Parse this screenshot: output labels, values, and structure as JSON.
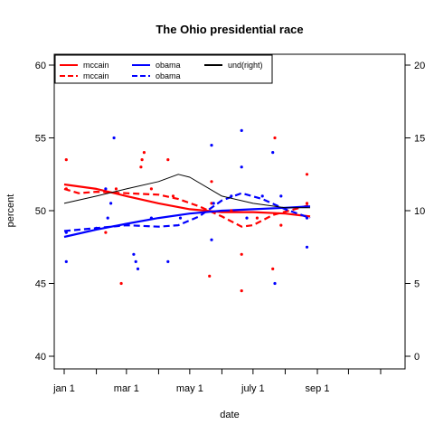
{
  "chart_data": {
    "type": "line",
    "title": "The Ohio presidential race",
    "xlabel": "date",
    "ylabel": "percent",
    "ylim": [
      40,
      60
    ],
    "y2lim": [
      0,
      20
    ],
    "xlim": [
      "2007-12-20",
      "2008-11-15"
    ],
    "yticks": [
      40,
      45,
      50,
      55,
      60
    ],
    "y2ticks": [
      0,
      5,
      10,
      15,
      20
    ],
    "xticks": [
      {
        "date": "2008-01-01",
        "label": "jan 1"
      },
      {
        "date": "2008-02-01",
        "label": ""
      },
      {
        "date": "2008-03-01",
        "label": "mar 1"
      },
      {
        "date": "2008-04-01",
        "label": ""
      },
      {
        "date": "2008-05-01",
        "label": "may 1"
      },
      {
        "date": "2008-06-01",
        "label": ""
      },
      {
        "date": "2008-07-01",
        "label": "july 1"
      },
      {
        "date": "2008-08-01",
        "label": ""
      },
      {
        "date": "2008-09-01",
        "label": "sep 1"
      },
      {
        "date": "2008-10-01",
        "label": ""
      },
      {
        "date": "2008-11-01",
        "label": ""
      }
    ],
    "legend": {
      "placement": "top-left",
      "entries": [
        {
          "label": "mccain",
          "color": "#ff0000",
          "style": "solid"
        },
        {
          "label": "mccain",
          "color": "#ff0000",
          "style": "dashed"
        },
        {
          "label": "obama",
          "color": "#0000ff",
          "style": "solid"
        },
        {
          "label": "obama",
          "color": "#0000ff",
          "style": "dashed"
        },
        {
          "label": "und(right)",
          "color": "#000000",
          "style": "solid"
        }
      ]
    },
    "points": [
      {
        "series": "mccain",
        "color": "#ff0000",
        "data": [
          [
            "2008-01-03",
            53.5
          ],
          [
            "2008-01-03",
            51.5
          ],
          [
            "2008-02-10",
            48.5
          ],
          [
            "2008-02-20",
            51.5
          ],
          [
            "2008-02-25",
            45
          ],
          [
            "2008-03-15",
            53
          ],
          [
            "2008-03-16",
            53.5
          ],
          [
            "2008-03-18",
            54
          ],
          [
            "2008-03-25",
            51.5
          ],
          [
            "2008-04-10",
            53.5
          ],
          [
            "2008-04-15",
            51
          ],
          [
            "2008-05-20",
            45.5
          ],
          [
            "2008-05-22",
            52
          ],
          [
            "2008-05-22",
            50.5
          ],
          [
            "2008-06-10",
            50
          ],
          [
            "2008-06-20",
            47
          ],
          [
            "2008-06-20",
            44.5
          ],
          [
            "2008-07-05",
            49.5
          ],
          [
            "2008-07-20",
            46
          ],
          [
            "2008-07-22",
            55
          ],
          [
            "2008-07-28",
            49
          ],
          [
            "2008-08-22",
            52.5
          ],
          [
            "2008-08-22",
            50.5
          ]
        ]
      },
      {
        "series": "obama",
        "color": "#0000ff",
        "data": [
          [
            "2008-01-03",
            46.5
          ],
          [
            "2008-01-03",
            48.5
          ],
          [
            "2008-02-01",
            48.8
          ],
          [
            "2008-02-10",
            51.5
          ],
          [
            "2008-02-12",
            49.5
          ],
          [
            "2008-02-15",
            50.5
          ],
          [
            "2008-02-18",
            55
          ],
          [
            "2008-03-08",
            47
          ],
          [
            "2008-03-10",
            46.5
          ],
          [
            "2008-03-12",
            46
          ],
          [
            "2008-03-25",
            49.5
          ],
          [
            "2008-04-10",
            46.5
          ],
          [
            "2008-04-22",
            49.5
          ],
          [
            "2008-05-22",
            54.5
          ],
          [
            "2008-05-22",
            48
          ],
          [
            "2008-05-24",
            50.5
          ],
          [
            "2008-06-10",
            51
          ],
          [
            "2008-06-20",
            53
          ],
          [
            "2008-06-20",
            55.5
          ],
          [
            "2008-06-25",
            49.5
          ],
          [
            "2008-07-10",
            51
          ],
          [
            "2008-07-20",
            54
          ],
          [
            "2008-07-22",
            45
          ],
          [
            "2008-07-28",
            51
          ],
          [
            "2008-08-22",
            47.5
          ],
          [
            "2008-08-22",
            49.5
          ]
        ]
      }
    ],
    "series": [
      {
        "name": "mccain",
        "color": "#ff0000",
        "style": "solid",
        "axis": "left",
        "data": [
          [
            "2008-01-01",
            51.8
          ],
          [
            "2008-02-01",
            51.5
          ],
          [
            "2008-03-01",
            51.0
          ],
          [
            "2008-04-01",
            50.5
          ],
          [
            "2008-05-01",
            50.1
          ],
          [
            "2008-06-01",
            49.9
          ],
          [
            "2008-07-01",
            49.9
          ],
          [
            "2008-08-01",
            49.8
          ],
          [
            "2008-08-25",
            49.6
          ]
        ]
      },
      {
        "name": "mccain",
        "color": "#ff0000",
        "style": "dashed",
        "axis": "left",
        "data": [
          [
            "2008-01-01",
            51.5
          ],
          [
            "2008-01-15",
            51.2
          ],
          [
            "2008-02-01",
            51.3
          ],
          [
            "2008-03-01",
            51.2
          ],
          [
            "2008-04-01",
            51.1
          ],
          [
            "2008-04-20",
            50.8
          ],
          [
            "2008-05-10",
            50.3
          ],
          [
            "2008-06-01",
            49.6
          ],
          [
            "2008-06-20",
            48.9
          ],
          [
            "2008-07-01",
            49.0
          ],
          [
            "2008-07-20",
            49.7
          ],
          [
            "2008-08-10",
            50.1
          ],
          [
            "2008-08-25",
            50.4
          ]
        ]
      },
      {
        "name": "obama",
        "color": "#0000ff",
        "style": "solid",
        "axis": "left",
        "data": [
          [
            "2008-01-01",
            48.2
          ],
          [
            "2008-02-01",
            48.7
          ],
          [
            "2008-03-01",
            49.1
          ],
          [
            "2008-04-01",
            49.5
          ],
          [
            "2008-05-01",
            49.8
          ],
          [
            "2008-06-01",
            50.0
          ],
          [
            "2008-07-01",
            50.1
          ],
          [
            "2008-08-01",
            50.2
          ],
          [
            "2008-08-25",
            50.3
          ]
        ]
      },
      {
        "name": "obama",
        "color": "#0000ff",
        "style": "dashed",
        "axis": "left",
        "data": [
          [
            "2008-01-01",
            48.6
          ],
          [
            "2008-02-01",
            48.8
          ],
          [
            "2008-03-01",
            49.0
          ],
          [
            "2008-04-01",
            48.9
          ],
          [
            "2008-04-20",
            49.0
          ],
          [
            "2008-05-10",
            49.6
          ],
          [
            "2008-06-01",
            50.7
          ],
          [
            "2008-06-20",
            51.2
          ],
          [
            "2008-07-10",
            50.8
          ],
          [
            "2008-08-01",
            50.1
          ],
          [
            "2008-08-25",
            49.5
          ]
        ]
      },
      {
        "name": "und(right)",
        "color": "#000000",
        "style": "solid",
        "axis": "right",
        "data": [
          [
            "2008-01-01",
            10.5
          ],
          [
            "2008-02-01",
            11.0
          ],
          [
            "2008-03-01",
            11.5
          ],
          [
            "2008-04-01",
            12.0
          ],
          [
            "2008-04-20",
            12.5
          ],
          [
            "2008-05-01",
            12.3
          ],
          [
            "2008-06-01",
            11.0
          ],
          [
            "2008-07-01",
            10.5
          ],
          [
            "2008-08-01",
            10.2
          ],
          [
            "2008-08-25",
            10.2
          ]
        ]
      }
    ]
  }
}
